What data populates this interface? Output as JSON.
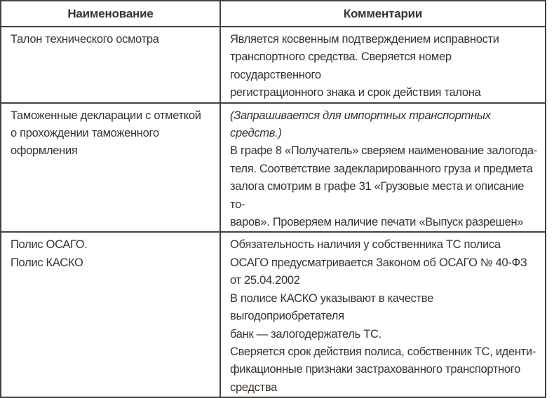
{
  "table": {
    "headers": [
      "Наименование",
      "Комментарии"
    ],
    "rows": [
      {
        "name": "Талон технического осмотра",
        "comment": "Является косвенным подтверждением исправности\nтранспортного средства. Сверяется номер государственного\nрегистрационного знака и срок действия талона"
      },
      {
        "name": "Таможенные декларации с отметкой\nо прохождении таможенного\nоформления",
        "note": "(Запрашивается для импортных транспортных средств.)",
        "comment": "В графе 8 «Получатель» сверяем наименование залогода-\nтеля. Соответствие задекларированного груза и предмета\nзалога смотрим в графе 31 «Грузовые места и описание то-\nваров». Проверяем наличие печати «Выпуск разрешен»"
      },
      {
        "name": "Полис ОСАГО.\nПолис КАСКО",
        "comment": "Обязательность наличия у собственника ТС полиса\nОСАГО предусматривается Законом об ОСАГО № 40-ФЗ\nот 25.04.2002\nВ полисе КАСКО указывают в качестве выгодоприобретателя\nбанк — залогодержатель ТС.\nСверяется срок действия полиса, собственник ТС, иденти-\nфикационные признаки застрахованного транспортного\nсредства"
      }
    ],
    "colors": {
      "border": "#46403a",
      "text": "#39322d",
      "background": "#ffffff"
    }
  }
}
